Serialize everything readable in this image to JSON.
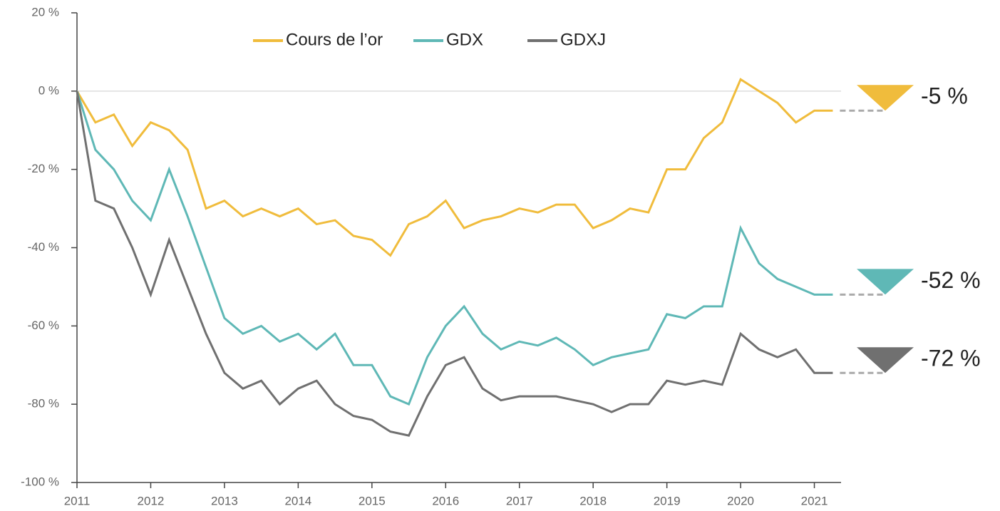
{
  "chart_data": {
    "type": "line",
    "x": [
      2011,
      2011.25,
      2011.5,
      2011.75,
      2012,
      2012.25,
      2012.5,
      2012.75,
      2013,
      2013.25,
      2013.5,
      2013.75,
      2014,
      2014.25,
      2014.5,
      2014.75,
      2015,
      2015.25,
      2015.5,
      2015.75,
      2016,
      2016.25,
      2016.5,
      2016.75,
      2017,
      2017.25,
      2017.5,
      2017.75,
      2018,
      2018.25,
      2018.5,
      2018.75,
      2019,
      2019.25,
      2019.5,
      2019.75,
      2020,
      2020.25,
      2020.5,
      2020.75,
      2021,
      2021.25
    ],
    "series": [
      {
        "name": "Cours de l’or",
        "color": "#f0bc3c",
        "values": [
          0,
          -8,
          -6,
          -14,
          -8,
          -10,
          -15,
          -30,
          -28,
          -32,
          -30,
          -32,
          -30,
          -34,
          -33,
          -37,
          -38,
          -42,
          -34,
          -32,
          -28,
          -35,
          -33,
          -32,
          -30,
          -31,
          -29,
          -29,
          -35,
          -33,
          -30,
          -31,
          -20,
          -20,
          -12,
          -8,
          3,
          0,
          -3,
          -8,
          -5,
          -5
        ]
      },
      {
        "name": "GDX",
        "color": "#5fb8b6",
        "values": [
          0,
          -15,
          -20,
          -28,
          -33,
          -20,
          -32,
          -45,
          -58,
          -62,
          -60,
          -64,
          -62,
          -66,
          -62,
          -70,
          -70,
          -78,
          -80,
          -68,
          -60,
          -55,
          -62,
          -66,
          -64,
          -65,
          -63,
          -66,
          -70,
          -68,
          -67,
          -66,
          -57,
          -58,
          -55,
          -55,
          -35,
          -44,
          -48,
          -50,
          -52,
          -52
        ]
      },
      {
        "name": "GDXJ",
        "color": "#707070",
        "values": [
          0,
          -28,
          -30,
          -40,
          -52,
          -38,
          -50,
          -62,
          -72,
          -76,
          -74,
          -80,
          -76,
          -74,
          -80,
          -83,
          -84,
          -87,
          -88,
          -78,
          -70,
          -68,
          -76,
          -79,
          -78,
          -78,
          -78,
          -79,
          -80,
          -82,
          -80,
          -80,
          -74,
          -75,
          -74,
          -75,
          -62,
          -66,
          -68,
          -66,
          -72,
          -72
        ]
      }
    ],
    "xlim": [
      2011,
      2022
    ],
    "xticks": [
      2011,
      2012,
      2013,
      2014,
      2015,
      2016,
      2017,
      2018,
      2019,
      2020,
      2021
    ],
    "ylim": [
      -100,
      20
    ],
    "yticks": [
      {
        "value": 20,
        "label": "20 %"
      },
      {
        "value": 0,
        "label": "0 %"
      },
      {
        "value": -20,
        "label": "-20 %"
      },
      {
        "value": -40,
        "label": "-40 %"
      },
      {
        "value": -60,
        "label": "-60 %"
      },
      {
        "value": -80,
        "label": "-80 %"
      },
      {
        "value": -100,
        "label": "-100 %"
      }
    ],
    "annotations": [
      {
        "text": "-5 %",
        "value": -5,
        "color": "#f0bc3c"
      },
      {
        "text": "-52 %",
        "value": -52,
        "color": "#5fb8b6"
      },
      {
        "text": "-72 %",
        "value": -72,
        "color": "#707070"
      }
    ],
    "legend": "top"
  }
}
